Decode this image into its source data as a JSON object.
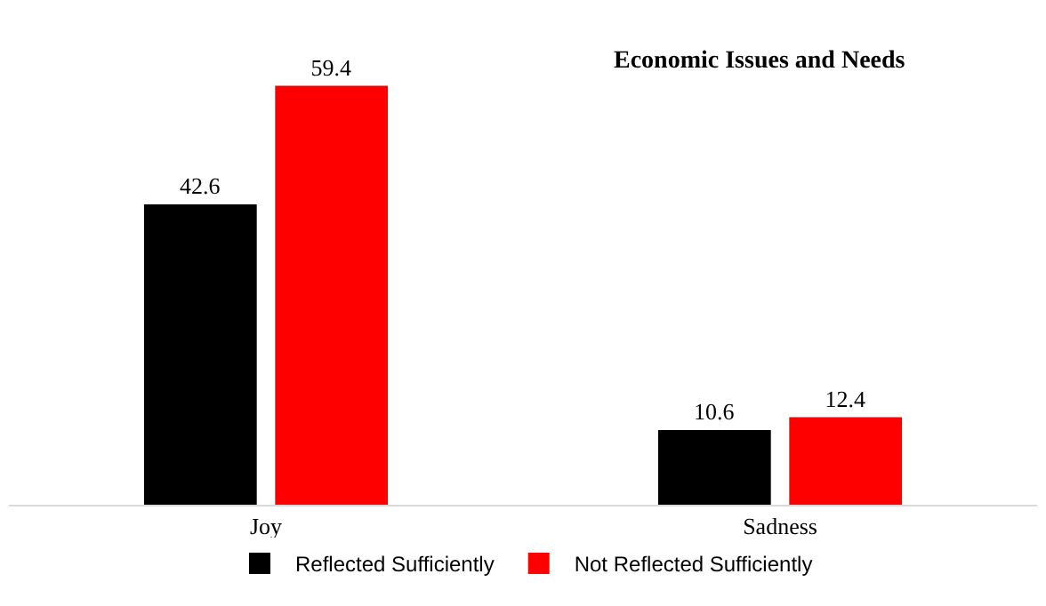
{
  "chart_data": {
    "type": "bar",
    "title": "Economic Issues and Needs",
    "categories": [
      "Joy",
      "Sadness"
    ],
    "series": [
      {
        "name": "Reflected Sufficiently",
        "color": "#000000",
        "values": [
          42.6,
          10.6
        ]
      },
      {
        "name": "Not Reflected Sufficiently",
        "color": "#ff0000",
        "values": [
          59.4,
          12.4
        ]
      }
    ],
    "data_labels": true,
    "legend": "bottom",
    "grid": false
  }
}
